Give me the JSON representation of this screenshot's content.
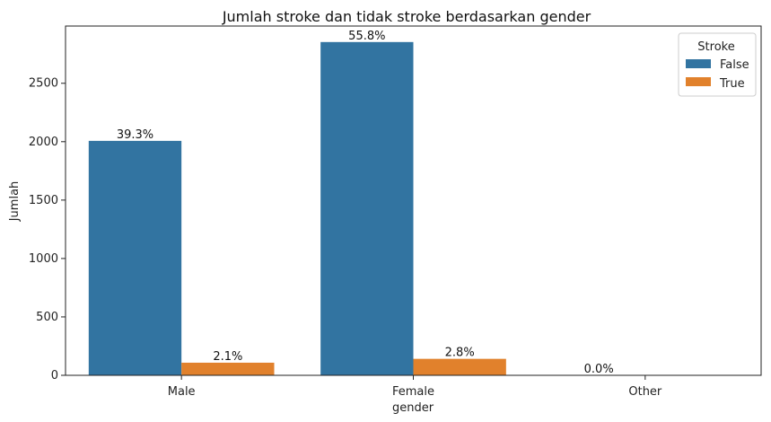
{
  "chart_data": {
    "type": "bar",
    "title": "Jumlah stroke dan tidak stroke berdasarkan gender",
    "xlabel": "gender",
    "ylabel": "Jumlah",
    "categories": [
      "Male",
      "Female",
      "Other"
    ],
    "series": [
      {
        "name": "False",
        "color": "#3274a1",
        "values": [
          2007,
          2853,
          1
        ],
        "labels": [
          "39.3%",
          "55.8%",
          "0.0%"
        ]
      },
      {
        "name": "True",
        "color": "#e1812c",
        "values": [
          108,
          141,
          0
        ],
        "labels": [
          "2.1%",
          "2.8%",
          ""
        ]
      }
    ],
    "ylim": [
      0,
      2990
    ],
    "yticks": [
      0,
      500,
      1000,
      1500,
      2000,
      2500
    ],
    "legend": {
      "title": "Stroke",
      "placement": "top-right"
    },
    "grid": false
  }
}
